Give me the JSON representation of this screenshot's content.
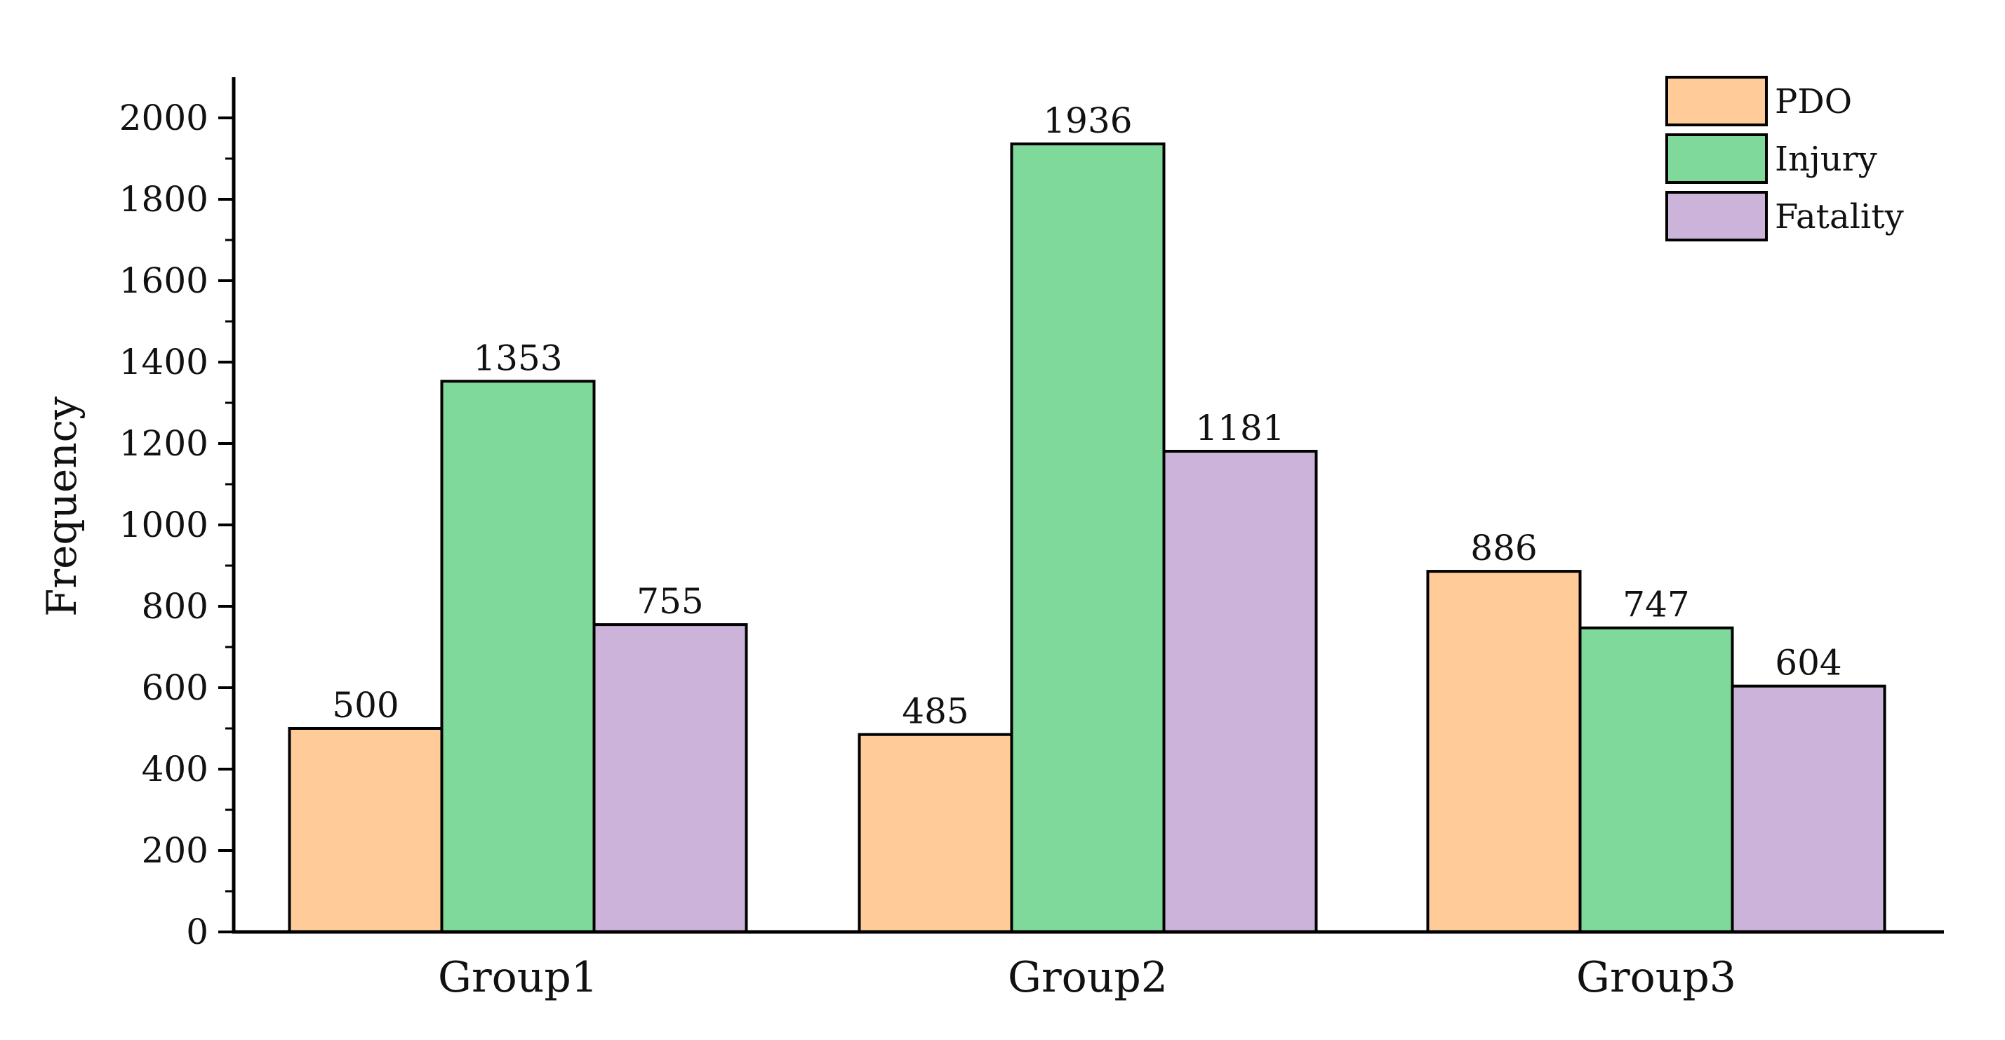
{
  "chart_data": {
    "type": "bar",
    "categories": [
      "Group1",
      "Group2",
      "Group3"
    ],
    "series": [
      {
        "name": "PDO",
        "values": [
          500,
          485,
          886
        ],
        "color": "#FFCC99"
      },
      {
        "name": "Injury",
        "values": [
          1353,
          1936,
          747
        ],
        "color": "#7FD99A"
      },
      {
        "name": "Fatality",
        "values": [
          755,
          1181,
          604
        ],
        "color": "#CCB3DA"
      }
    ],
    "data_labels": [
      [
        "500",
        "485",
        "886"
      ],
      [
        "1353",
        "1936",
        "747"
      ],
      [
        "755",
        "1181",
        "604"
      ]
    ],
    "title": "",
    "xlabel": "",
    "ylabel": "Frequency",
    "ylim": [
      0,
      2100
    ],
    "yticks": [
      0,
      200,
      400,
      600,
      800,
      1000,
      1200,
      1400,
      1600,
      1800,
      2000
    ],
    "ytick_labels": [
      "0",
      "200",
      "400",
      "600",
      "800",
      "1000",
      "1200",
      "1400",
      "1600",
      "1800",
      "2000"
    ],
    "grid": false,
    "legend_position": "top-right"
  }
}
